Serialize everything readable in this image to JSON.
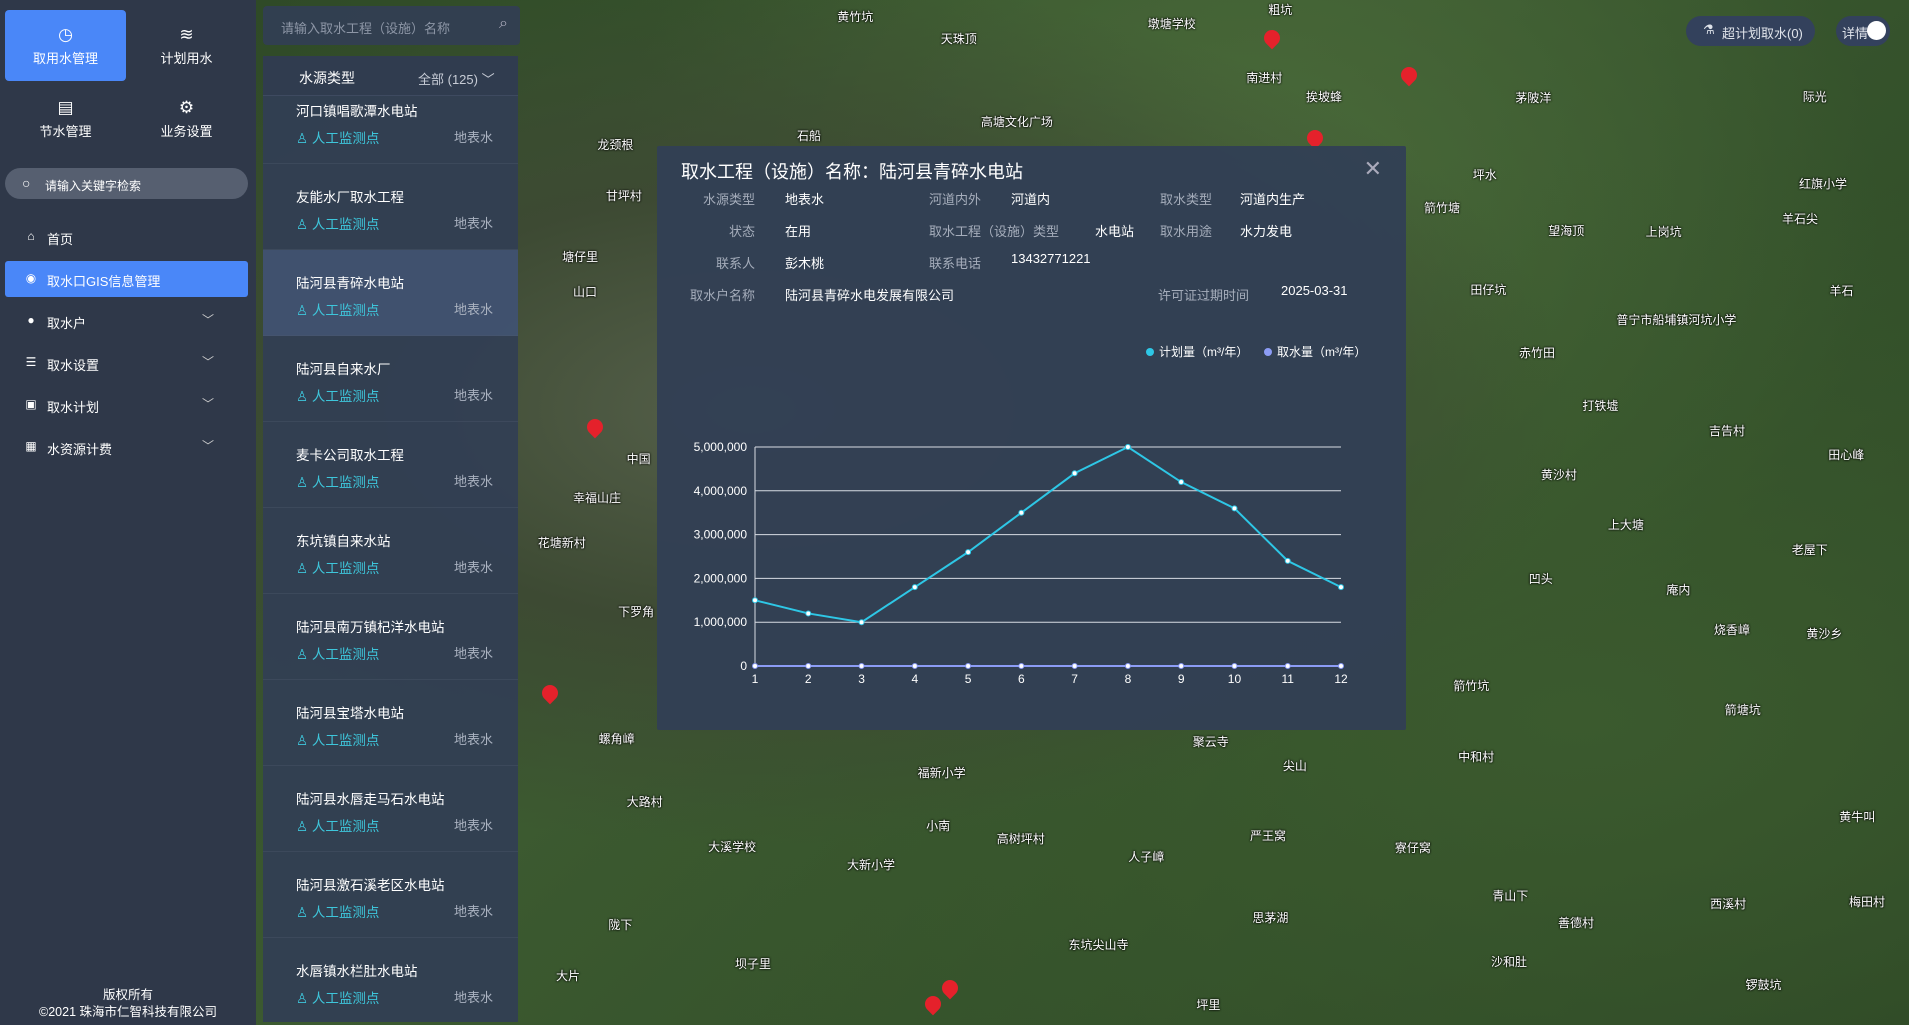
{
  "sidebar": {
    "tiles": [
      {
        "label": "取用水管理",
        "icon": "gauge-icon"
      },
      {
        "label": "计划用水",
        "icon": "waves-icon"
      },
      {
        "label": "节水管理",
        "icon": "document-icon"
      },
      {
        "label": "业务设置",
        "icon": "gear-icon"
      }
    ],
    "search_placeholder": "请输入关键字检索",
    "menu": [
      {
        "label": "首页",
        "icon": "home-icon"
      },
      {
        "label": "取水口GIS信息管理",
        "icon": "location-icon",
        "active": true
      },
      {
        "label": "取水户",
        "icon": "user-icon"
      },
      {
        "label": "取水设置",
        "icon": "database-icon"
      },
      {
        "label": "取水计划",
        "icon": "calendar-icon"
      },
      {
        "label": "水资源计费",
        "icon": "chart-icon"
      }
    ],
    "footer": [
      "版权所有",
      "©2021 珠海市仁智科技有限公司"
    ]
  },
  "map_search": {
    "placeholder": "请输入取水工程（设施）名称"
  },
  "list": {
    "filter_label": "水源类型",
    "filter_value": "全部 (125)",
    "items": [
      {
        "name": "河口镇唱歌潭水电站",
        "monitor": "人工监测点",
        "source": "地表水"
      },
      {
        "name": "友能水厂取水工程",
        "monitor": "人工监测点",
        "source": "地表水"
      },
      {
        "name": "陆河县青碎水电站",
        "monitor": "人工监测点",
        "source": "地表水",
        "selected": true
      },
      {
        "name": "陆河县自来水厂",
        "monitor": "人工监测点",
        "source": "地表水"
      },
      {
        "name": "麦卡公司取水工程",
        "monitor": "人工监测点",
        "source": "地表水"
      },
      {
        "name": "东坑镇自来水站",
        "monitor": "人工监测点",
        "source": "地表水"
      },
      {
        "name": "陆河县南万镇杞洋水电站",
        "monitor": "人工监测点",
        "source": "地表水"
      },
      {
        "name": "陆河县宝塔水电站",
        "monitor": "人工监测点",
        "source": "地表水"
      },
      {
        "name": "陆河县水唇走马石水电站",
        "monitor": "人工监测点",
        "source": "地表水"
      },
      {
        "name": "陆河县激石溪老区水电站",
        "monitor": "人工监测点",
        "source": "地表水"
      },
      {
        "name": "水唇镇水栏肚水电站",
        "monitor": "人工监测点",
        "source": "地表水"
      }
    ]
  },
  "modal": {
    "title": "取水工程（设施）名称：陆河县青碎水电站",
    "fields": {
      "water_source": {
        "label": "水源类型",
        "value": "地表水"
      },
      "river_inout": {
        "label": "河道内外",
        "value": "河道内"
      },
      "intake_type": {
        "label": "取水类型",
        "value": "河道内生产"
      },
      "status": {
        "label": "状态",
        "value": "在用"
      },
      "facility_type": {
        "label": "取水工程（设施）类型",
        "value": "水电站"
      },
      "usage": {
        "label": "取水用途",
        "value": "水力发电"
      },
      "contact": {
        "label": "联系人",
        "value": "彭木桃"
      },
      "phone": {
        "label": "联系电话",
        "value": "13432771221"
      },
      "owner": {
        "label": "取水户名称",
        "value": "陆河县青碎水电发展有限公司"
      },
      "license_expiry": {
        "label": "许可证过期时间",
        "value": "2025-03-31"
      }
    }
  },
  "chart_data": {
    "type": "line",
    "categories": [
      "1",
      "2",
      "3",
      "4",
      "5",
      "6",
      "7",
      "8",
      "9",
      "10",
      "11",
      "12"
    ],
    "series": [
      {
        "name": "计划量（m³/年）",
        "color": "#2ec7e6",
        "values": [
          1500000,
          1200000,
          1000000,
          1800000,
          2600000,
          3500000,
          4400000,
          5000000,
          4200000,
          3600000,
          2400000,
          1800000
        ]
      },
      {
        "name": "取水量（m³/年）",
        "color": "#8c9cf5",
        "values": [
          0,
          0,
          0,
          0,
          0,
          0,
          0,
          0,
          0,
          0,
          0,
          0
        ]
      }
    ],
    "yticks": [
      "0",
      "1,000,000",
      "2,000,000",
      "3,000,000",
      "4,000,000",
      "5,000,000"
    ],
    "ylim": [
      0,
      5000000
    ],
    "grid": true,
    "legend": "top-right"
  },
  "topright": {
    "over_plan_label": "超计划取水(0)",
    "details_label": "详情",
    "details_on": true
  },
  "map": {
    "labels": [
      "黄竹坑",
      "天珠顶",
      "墩塘学校",
      "粗坑",
      "南进村",
      "挨坡蜂",
      "茅陂洋",
      "际光",
      "高塘文化广场",
      "石船",
      "龙颈根",
      "甘坪村",
      "坪水",
      "箭竹塘",
      "望海顶",
      "上岗坑",
      "红旗小学",
      "羊石尖",
      "田仔坑",
      "羊石",
      "赤竹田",
      "普宁市船埔镇河坑小学",
      "打铁墟",
      "吉告村",
      "田心峰",
      "黄沙村",
      "上大塘",
      "老屋下",
      "凹头",
      "庵内",
      "烧香嶂",
      "黄沙乡",
      "箭竹坑",
      "箭塘坑",
      "中和村",
      "黄牛叫",
      "幸福山庄",
      "花塘新村",
      "下罗角",
      "螺角嶂",
      "福新小学",
      "聚云寺",
      "尖山",
      "大路村",
      "小南",
      "高树坪村",
      "严王窝",
      "寮仔窝",
      "大溪学校",
      "大新小学",
      "人子嶂",
      "青山下",
      "西溪村",
      "梅田村",
      "陇下",
      "思茅湖",
      "善德村",
      "东坑尖山寺",
      "沙和肚",
      "大片",
      "坝子里",
      "坪里",
      "锣鼓坑",
      "山口",
      "塘仔里",
      "中国"
    ]
  }
}
